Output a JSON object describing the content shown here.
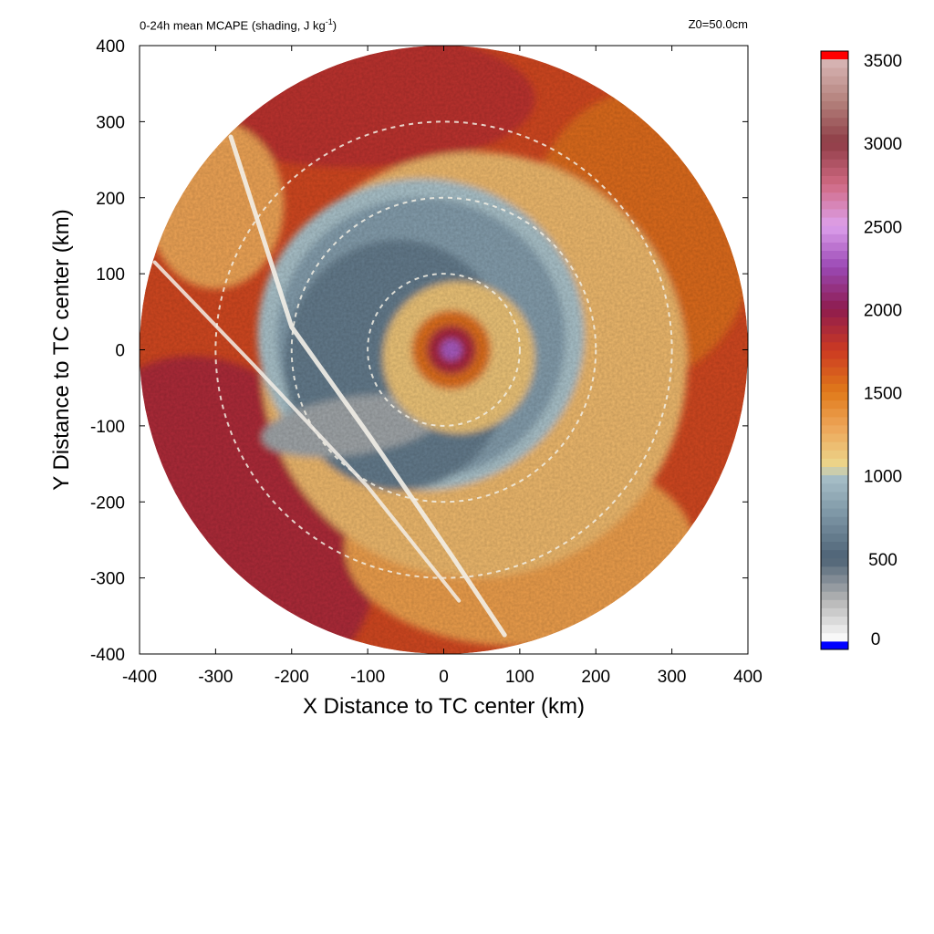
{
  "header": {
    "title_left": "0-24h mean MCAPE (shading, J kg",
    "title_left_sup": "-1",
    "title_left_end": ")",
    "title_right": "Z0=50.0cm"
  },
  "chart_data": {
    "type": "heatmap",
    "title": "0-24h mean MCAPE (shading, J kg-1)",
    "annotation": "Z0=50.0cm",
    "xlabel": "X Distance to TC center (km)",
    "ylabel": "Y Distance to TC center (km)",
    "xlim": [
      -400,
      400
    ],
    "ylim": [
      -400,
      400
    ],
    "xticks": [
      "-400",
      "-300",
      "-200",
      "-100",
      "0",
      "100",
      "200",
      "300",
      "400"
    ],
    "yticks": [
      "400",
      "300",
      "200",
      "100",
      "0",
      "-100",
      "-200",
      "-300",
      "-400"
    ],
    "domain_radius_km": 400,
    "range_rings_km": [
      100,
      200,
      300
    ],
    "coastline_approx": [
      [
        -280,
        280
      ],
      [
        -200,
        30
      ],
      [
        -100,
        -110
      ],
      [
        10,
        -270
      ],
      [
        80,
        -375
      ]
    ],
    "colorbar": {
      "min": 0,
      "max": 3500,
      "ticks": [
        "3500",
        "3000",
        "2500",
        "2000",
        "1500",
        "1000",
        "500",
        "0"
      ],
      "under_color": "#0000ff",
      "over_color": "#ff0000",
      "stops": [
        [
          0,
          "#ffffff"
        ],
        [
          250,
          "#b4b4b4"
        ],
        [
          500,
          "#4d6275"
        ],
        [
          750,
          "#7a93a3"
        ],
        [
          1000,
          "#a9c1c9"
        ],
        [
          1050,
          "#ecd88e"
        ],
        [
          1300,
          "#eda355"
        ],
        [
          1500,
          "#e07a1a"
        ],
        [
          1750,
          "#cc3a22"
        ],
        [
          2000,
          "#8e1c4e"
        ],
        [
          2250,
          "#9a48b4"
        ],
        [
          2500,
          "#dda0ec"
        ],
        [
          2750,
          "#d06a82"
        ],
        [
          3000,
          "#8e3c46"
        ],
        [
          3250,
          "#b4827c"
        ],
        [
          3500,
          "#d9b7b7"
        ]
      ]
    },
    "field_features": [
      {
        "feature": "eye maximum",
        "x_km": 10,
        "y_km": 0,
        "value_J_per_kg": 2300
      },
      {
        "feature": "low-value spiral band minimum",
        "x_km": -130,
        "y_km": -100,
        "value_J_per_kg": 300
      },
      {
        "feature": "outer environment",
        "r_km": 380,
        "value_J_per_kg": 1700
      }
    ]
  }
}
